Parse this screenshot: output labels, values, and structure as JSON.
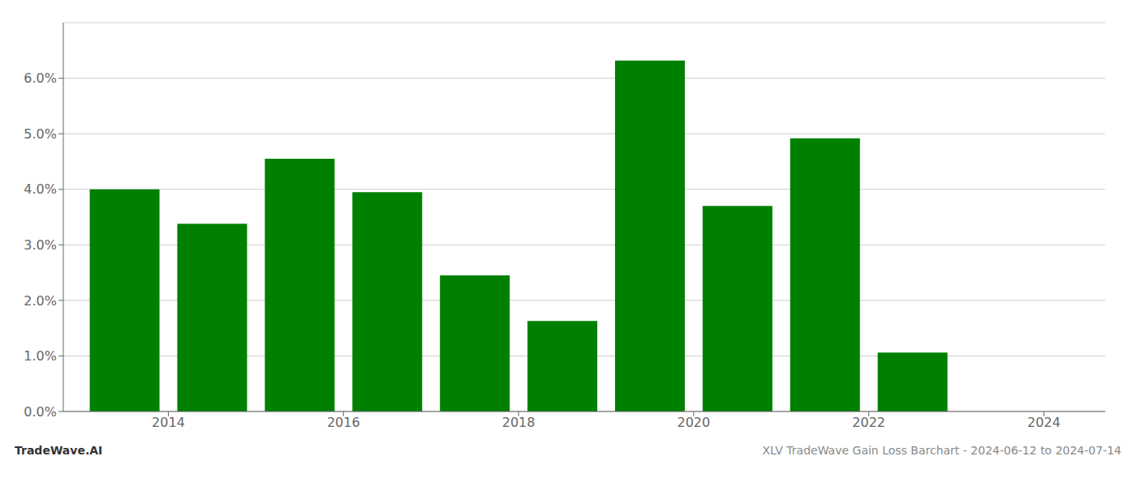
{
  "chart_data": {
    "type": "bar",
    "title": "XLV TradeWave Gain Loss Barchart - 2024-06-12 to 2024-07-14",
    "annotations": [
      "TradeWave.AI"
    ],
    "x": [
      2014,
      2015,
      2016,
      2017,
      2018,
      2019,
      2020,
      2021,
      2022,
      2023
    ],
    "values": [
      0.04,
      0.0338,
      0.0455,
      0.0395,
      0.0245,
      0.0163,
      0.0632,
      0.037,
      0.0492,
      0.0106
    ],
    "color": "#008000",
    "xlim": [
      2013.3,
      2025.2
    ],
    "xticks": [
      {
        "value": 2014.5,
        "label": "2014"
      },
      {
        "value": 2016.5,
        "label": "2016"
      },
      {
        "value": 2018.5,
        "label": "2018"
      },
      {
        "value": 2020.5,
        "label": "2020"
      },
      {
        "value": 2022.5,
        "label": "2022"
      },
      {
        "value": 2024.5,
        "label": "2024"
      }
    ],
    "ylim": [
      0,
      0.07
    ],
    "yticks": [
      {
        "value": 0.0,
        "label": "0.0%"
      },
      {
        "value": 0.01,
        "label": "1.0%"
      },
      {
        "value": 0.02,
        "label": "2.0%"
      },
      {
        "value": 0.03,
        "label": "3.0%"
      },
      {
        "value": 0.04,
        "label": "4.0%"
      },
      {
        "value": 0.05,
        "label": "5.0%"
      },
      {
        "value": 0.06,
        "label": "6.0%"
      }
    ],
    "grid": true
  }
}
